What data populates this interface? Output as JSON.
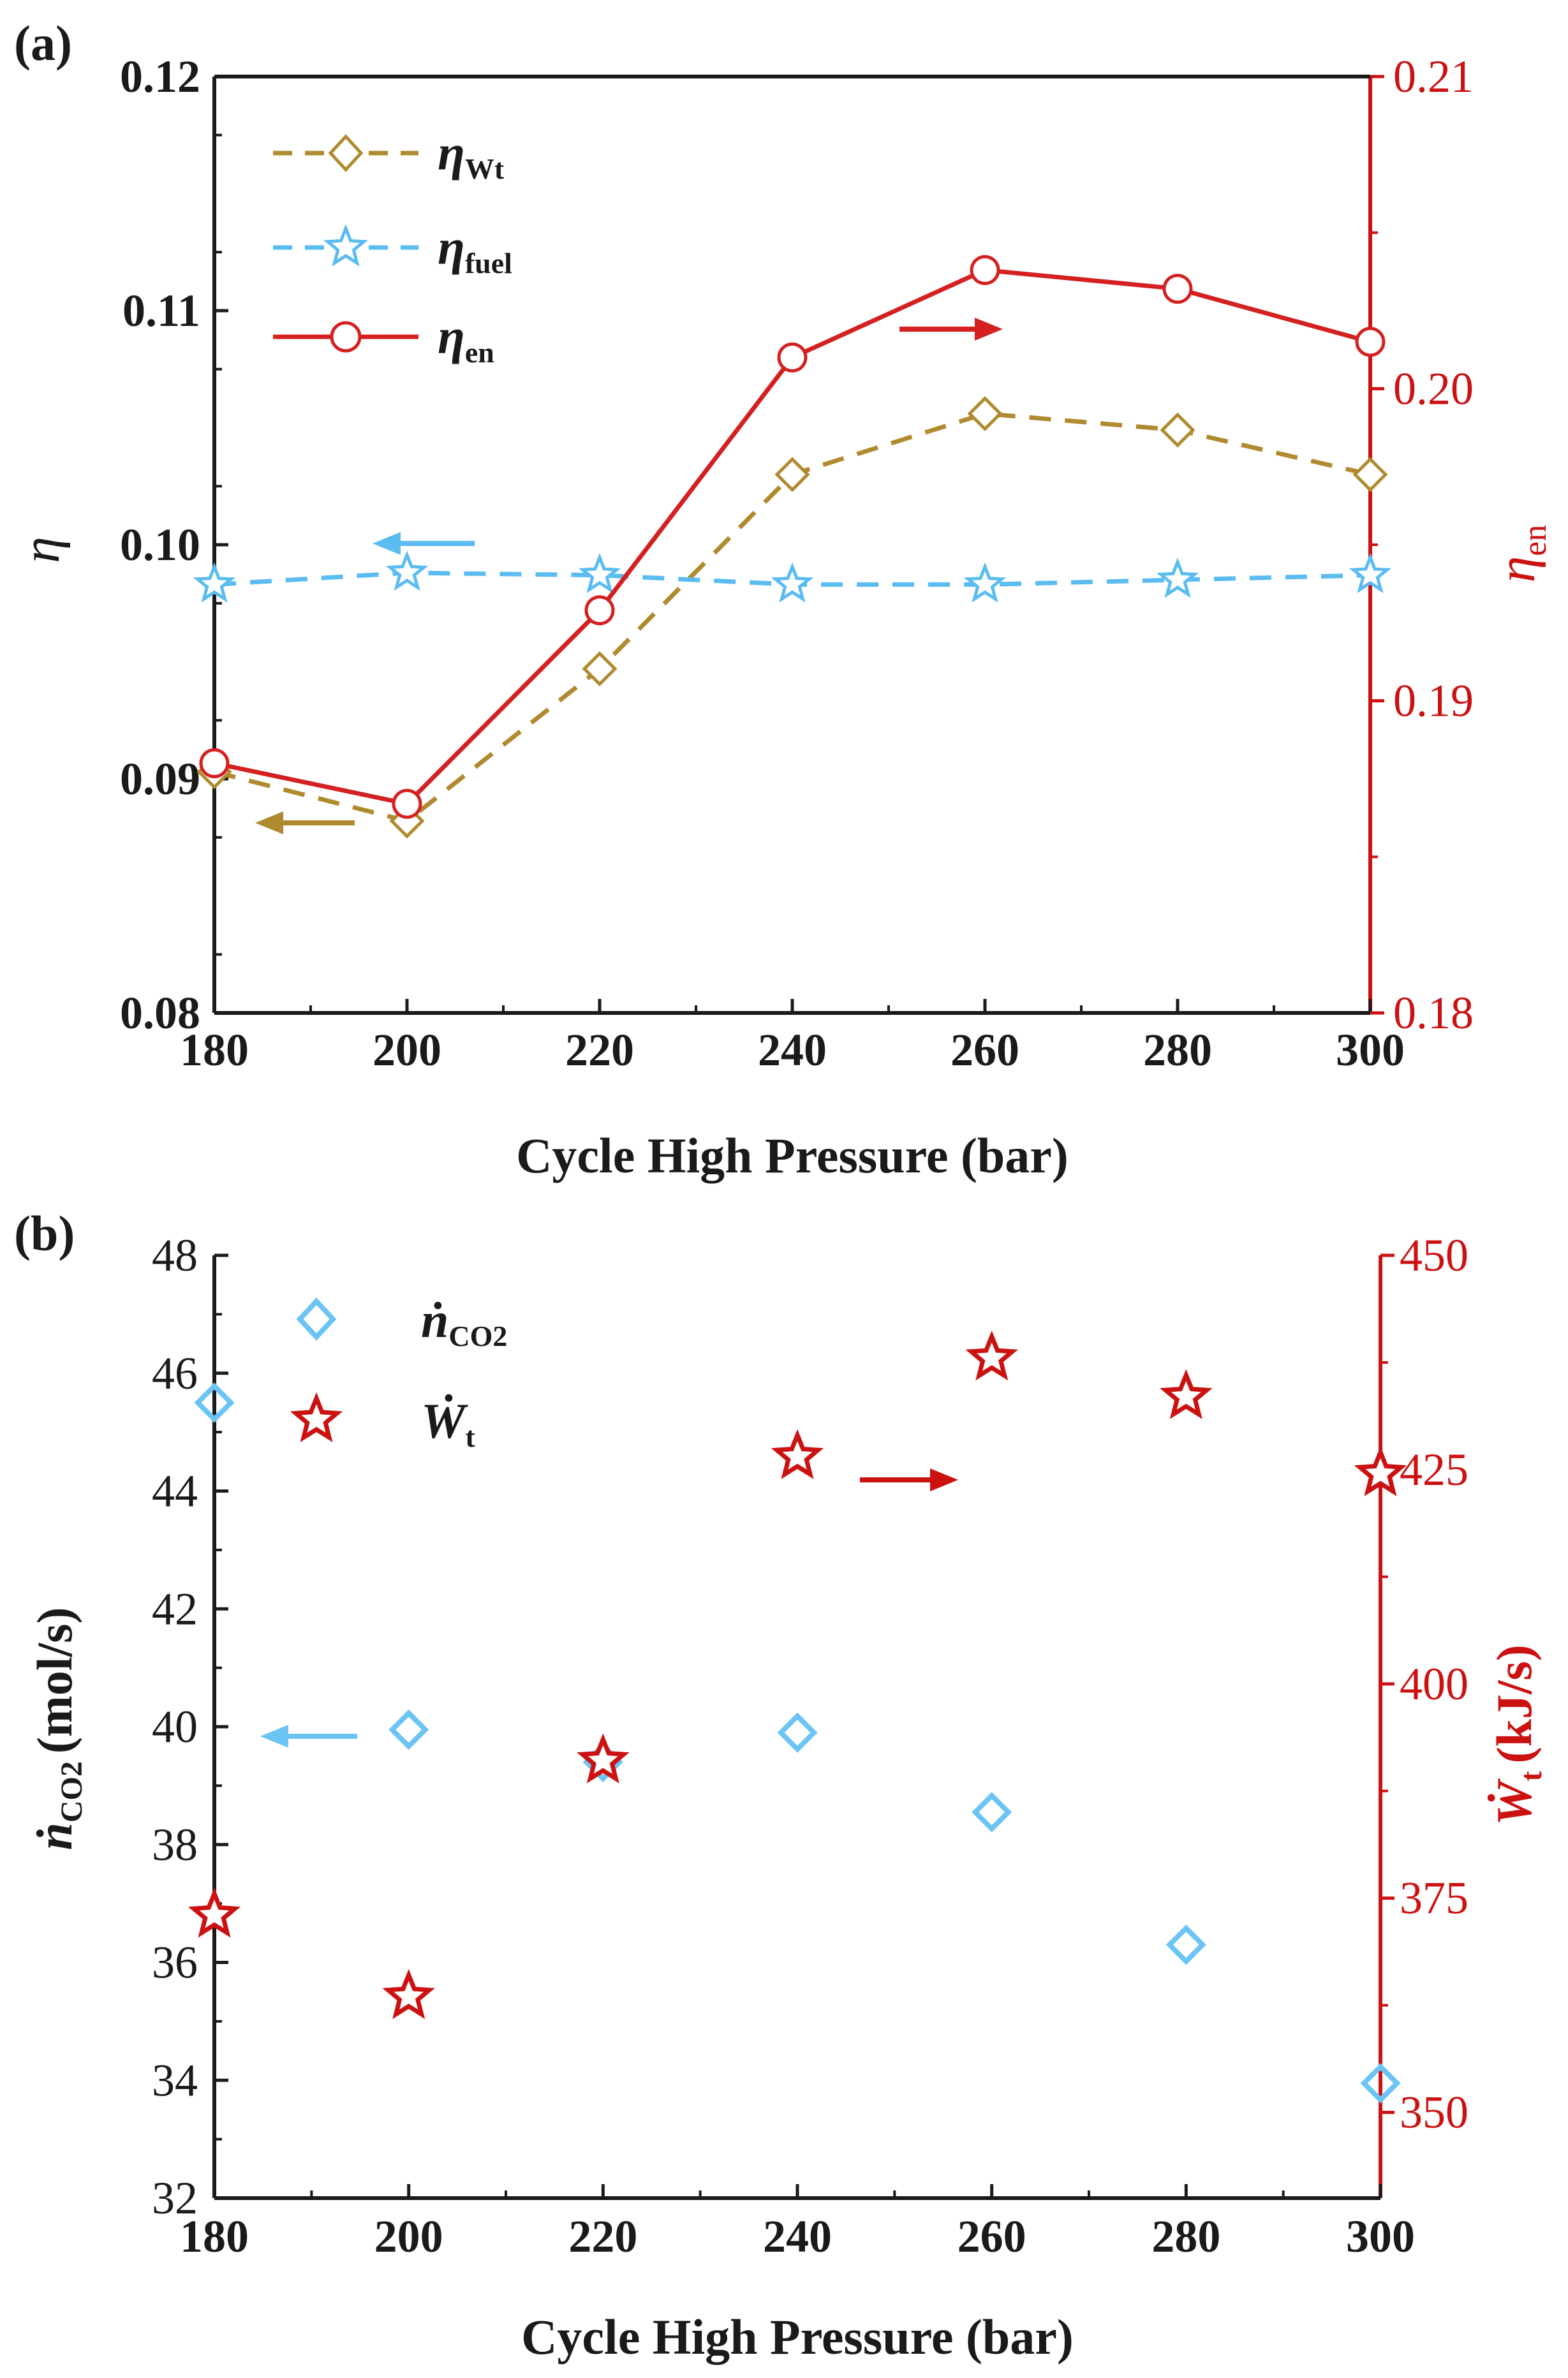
{
  "colors": {
    "axis": "#1a1a1a",
    "right_axis": "#cc1111",
    "eta_wt": "#b08a2e",
    "eta_fuel": "#5bbcf0",
    "eta_en": "#d42020",
    "n_co2": "#6cc4f4",
    "w_t": "#cc1111"
  },
  "chart_data": [
    {
      "panel": "(a)",
      "type": "line",
      "xlabel": "Cycle High Pressure (bar)",
      "ylabel": "η",
      "ylabel_right": "η",
      "ylabel_right_sub": "en",
      "xlim": [
        180,
        300
      ],
      "ylim": [
        0.08,
        0.12
      ],
      "ylim_right": [
        0.18,
        0.21
      ],
      "x": [
        180,
        200,
        220,
        240,
        260,
        280,
        300
      ],
      "x_tick_labels": [
        "180",
        "200",
        "220",
        "240",
        "260",
        "280",
        "300"
      ],
      "y_tick_labels": [
        "0.08",
        "0.09",
        "0.10",
        "0.11",
        "0.12"
      ],
      "y_right_tick_labels": [
        "0.18",
        "0.19",
        "0.20",
        "0.21"
      ],
      "series": [
        {
          "name": "η",
          "name_sub": "Wt",
          "axis": "left",
          "marker": "diamond",
          "line": "dashed",
          "values": [
            0.0903,
            0.0882,
            0.0947,
            0.103,
            0.1056,
            0.1049,
            0.103
          ]
        },
        {
          "name": "η",
          "name_sub": "fuel",
          "axis": "left",
          "marker": "star",
          "line": "dashed",
          "values": [
            0.0983,
            0.0988,
            0.0987,
            0.0983,
            0.0983,
            0.0985,
            0.0987
          ]
        },
        {
          "name": "η",
          "name_sub": "en",
          "axis": "right",
          "marker": "circle",
          "line": "solid",
          "values": [
            0.188,
            0.1867,
            0.1929,
            0.201,
            0.2038,
            0.2032,
            0.2015
          ]
        }
      ],
      "annotations": [
        "arrow → right axis (η_en)",
        "arrow ← left axis (η_fuel)",
        "arrow ← left axis (η_Wt)"
      ]
    },
    {
      "panel": "(b)",
      "type": "scatter",
      "xlabel": "Cycle High Pressure (bar)",
      "ylabel": "ṅ",
      "ylabel_sub": "CO2",
      "ylabel_unit": "(mol/s)",
      "ylabel_right": "Ẇ",
      "ylabel_right_sub": "t",
      "ylabel_right_unit": "(kJ/s)",
      "xlim": [
        180,
        300
      ],
      "ylim": [
        32,
        48
      ],
      "ylim_right": [
        340,
        450
      ],
      "x": [
        180,
        200,
        220,
        240,
        260,
        280,
        300
      ],
      "x_tick_labels": [
        "180",
        "200",
        "220",
        "240",
        "260",
        "280",
        "300"
      ],
      "y_tick_labels": [
        "32",
        "34",
        "36",
        "38",
        "40",
        "42",
        "44",
        "46",
        "48"
      ],
      "y_right_tick_labels": [
        "350",
        "375",
        "400",
        "425",
        "450"
      ],
      "series": [
        {
          "name": "ṅ",
          "name_sub": "CO2",
          "axis": "left",
          "marker": "diamond",
          "values": [
            45.5,
            39.95,
            39.4,
            39.9,
            38.55,
            36.3,
            33.95
          ]
        },
        {
          "name": "Ẇ",
          "name_sub": "t",
          "axis": "right",
          "marker": "star",
          "values": [
            373.0,
            363.5,
            391.0,
            426.5,
            438.0,
            433.5,
            424.5
          ]
        }
      ],
      "annotations": [
        "arrow ← left axis (ṅ_CO2)",
        "arrow → right axis (Ẇ_t)"
      ]
    }
  ]
}
